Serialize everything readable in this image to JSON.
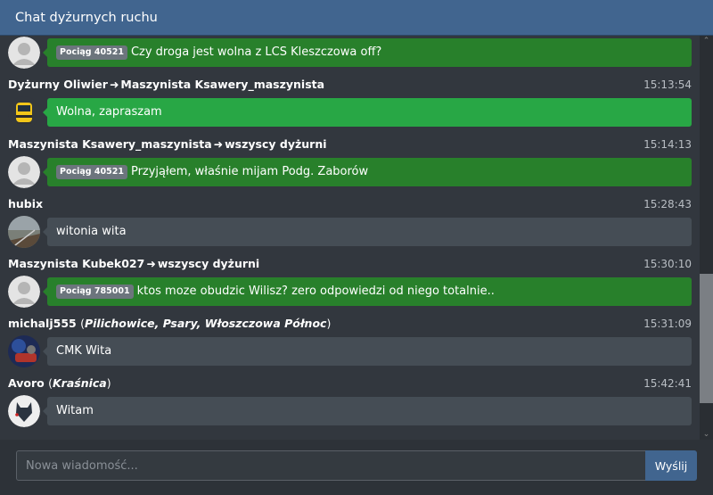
{
  "header": {
    "title": "Chat dyżurnych ruchu"
  },
  "messages": [
    {
      "from": "",
      "to": "",
      "time": "",
      "badge": "Pociąg 40521",
      "text": "Czy droga jest wolna z LCS Kleszczowa off?",
      "style": "dark",
      "avatar": "default"
    },
    {
      "from": "Dyżurny Oliwier",
      "to": "Maszynista Ksawery_maszynista",
      "time": "15:13:54",
      "badge": "",
      "text": "Wolna, zapraszam",
      "style": "light",
      "avatar": "train"
    },
    {
      "from": "Maszynista Ksawery_maszynista",
      "to": "wszyscy dyżurni",
      "time": "15:14:13",
      "badge": "Pociąg 40521",
      "text": "Przyjąłem, właśnie mijam Podg. Zaborów",
      "style": "dark",
      "avatar": "default"
    },
    {
      "from": "hubix",
      "to": "",
      "time": "15:28:43",
      "badge": "",
      "text": "witonia wita",
      "style": "gray",
      "avatar": "photo-rail"
    },
    {
      "from": "Maszynista Kubek027",
      "to": "wszyscy dyżurni",
      "time": "15:30:10",
      "badge": "Pociąg 785001",
      "text": "ktos moze obudzic Wilisz? zero odpowiedzi od niego totalnie..",
      "style": "dark",
      "avatar": "default"
    },
    {
      "from": "michalj555",
      "stations": "Pilichowice, Psary, Włoszczowa Północ",
      "time": "15:31:09",
      "badge": "",
      "text": "CMK Wita",
      "style": "gray",
      "avatar": "photo-cab"
    },
    {
      "from": "Avoro",
      "stations": "Kraśnica",
      "time": "15:42:41",
      "badge": "",
      "text": "Witam",
      "style": "gray",
      "avatar": "wolf"
    }
  ],
  "footer": {
    "placeholder": "Nowa wiadomość...",
    "send_label": "Wyślij"
  },
  "colors": {
    "header": "#41658f",
    "bubble_dark_green": "#28802b",
    "bubble_green": "#28a745",
    "bubble_gray": "#454d55"
  },
  "scroll": {
    "position_percent": 100
  }
}
